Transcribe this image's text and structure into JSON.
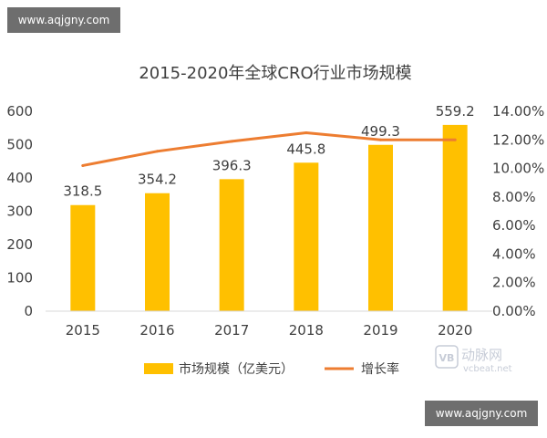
{
  "watermarks": {
    "top_left": "www.aqjgny.com",
    "bottom_right": "www.aqjgny.com"
  },
  "logo": {
    "icon_text": "VB",
    "name": "动脉网",
    "domain": "vcbeat.net"
  },
  "colors": {
    "bar": "#FFC000",
    "line": "#ED7D31",
    "text": "#404040",
    "axis": "#d9d9d9"
  },
  "chart_data": {
    "type": "bar",
    "title": "2015-2020年全球CRO行业市场规模",
    "categories": [
      "2015",
      "2016",
      "2017",
      "2018",
      "2019",
      "2020"
    ],
    "series": [
      {
        "name": "市场规模（亿美元）",
        "type": "bar",
        "axis": "left",
        "values": [
          318.5,
          354.2,
          396.3,
          445.8,
          499.3,
          559.2
        ],
        "data_labels": [
          "318.5",
          "354.2",
          "396.3",
          "445.8",
          "499.3",
          "559.2"
        ]
      },
      {
        "name": "增长率",
        "type": "line",
        "axis": "right",
        "values": [
          10.2,
          11.2,
          11.9,
          12.5,
          12.0,
          12.0
        ]
      }
    ],
    "ylim": [
      0,
      600
    ],
    "yticks": [
      "0",
      "100",
      "200",
      "300",
      "400",
      "500",
      "600"
    ],
    "y2lim": [
      0,
      14
    ],
    "y2ticks": [
      "0.00%",
      "2.00%",
      "4.00%",
      "6.00%",
      "8.00%",
      "10.00%",
      "12.00%",
      "14.00%"
    ],
    "xlabel": "",
    "ylabel": "",
    "grid": false,
    "legend_position": "bottom"
  }
}
